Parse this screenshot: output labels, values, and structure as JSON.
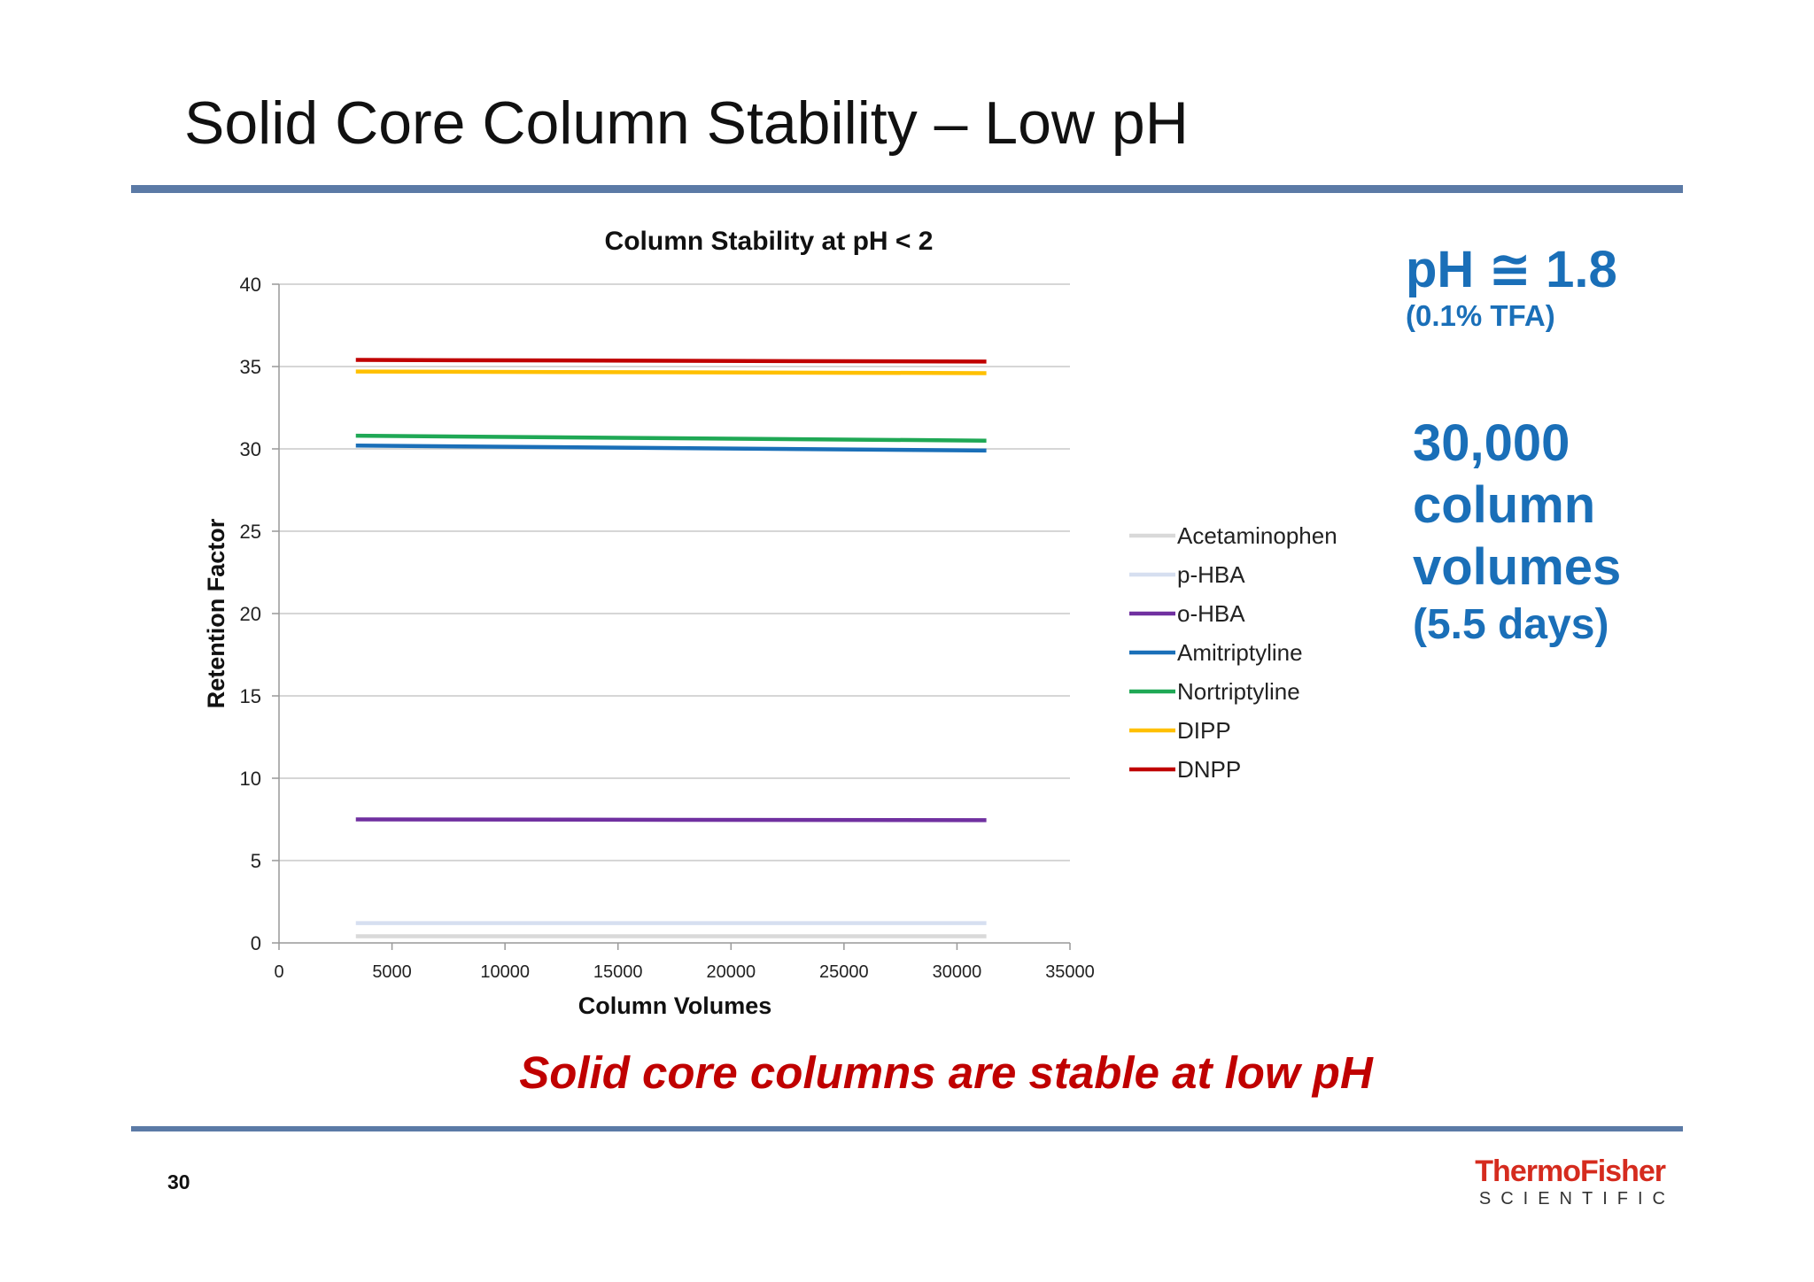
{
  "slide": {
    "title": "Solid Core Column Stability – Low pH",
    "page_number": "30",
    "conclusion": "Solid core columns are stable at low pH",
    "accent_color": "#5b7aa6",
    "conclusion_color": "#c00000",
    "callout_color": "#1a6fb8"
  },
  "callouts": {
    "ph": "pH ≅ 1.8",
    "tfa": "(0.1% TFA)",
    "cv_line1": "30,000",
    "cv_line2": "column",
    "cv_line3": "volumes",
    "days": "(5.5 days)"
  },
  "logo": {
    "brand": "ThermoFisher",
    "sub": "SCIENTIFIC"
  },
  "chart_data": {
    "type": "line",
    "title": "Column Stability at pH < 2",
    "xlabel": "Column Volumes",
    "ylabel": "Retention Factor",
    "xlim": [
      0,
      35000
    ],
    "ylim": [
      0,
      40
    ],
    "xticks": [
      "0",
      "5000",
      "10000",
      "15000",
      "20000",
      "25000",
      "30000",
      "35000"
    ],
    "yticks": [
      "0",
      "5",
      "10",
      "15",
      "20",
      "25",
      "30",
      "35",
      "40"
    ],
    "grid": "horizontal",
    "legend_position": "right",
    "series": [
      {
        "name": "Acetaminophen",
        "color": "#d9d9d9",
        "x": [
          3400,
          31300
        ],
        "y": [
          0.4,
          0.4
        ]
      },
      {
        "name": "p-HBA",
        "color": "#d6dff0",
        "x": [
          3400,
          31300
        ],
        "y": [
          1.2,
          1.2
        ]
      },
      {
        "name": "o-HBA",
        "color": "#7030a0",
        "x": [
          3400,
          31300
        ],
        "y": [
          7.5,
          7.45
        ]
      },
      {
        "name": "Amitriptyline",
        "color": "#1a6fb8",
        "x": [
          3400,
          31300
        ],
        "y": [
          30.2,
          29.9
        ]
      },
      {
        "name": "Nortriptyline",
        "color": "#1fa855",
        "x": [
          3400,
          31300
        ],
        "y": [
          30.8,
          30.5
        ]
      },
      {
        "name": "DIPP",
        "color": "#ffc000",
        "x": [
          3400,
          31300
        ],
        "y": [
          34.7,
          34.6
        ]
      },
      {
        "name": "DNPP",
        "color": "#c00000",
        "x": [
          3400,
          31300
        ],
        "y": [
          35.4,
          35.3
        ]
      }
    ]
  }
}
